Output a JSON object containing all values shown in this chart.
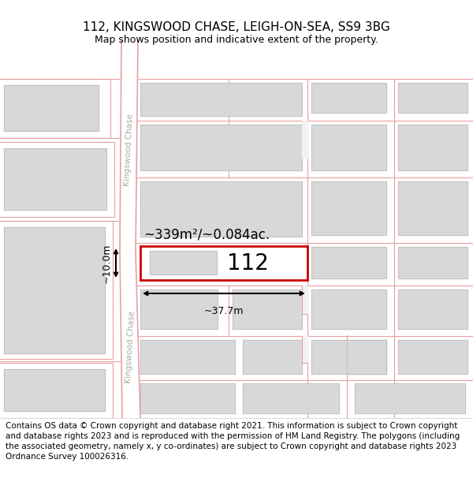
{
  "title": "112, KINGSWOOD CHASE, LEIGH-ON-SEA, SS9 3BG",
  "subtitle": "Map shows position and indicative extent of the property.",
  "footer": "Contains OS data © Crown copyright and database right 2021. This information is subject to Crown copyright and database rights 2023 and is reproduced with the permission of HM Land Registry. The polygons (including the associated geometry, namely x, y co-ordinates) are subject to Crown copyright and database rights 2023 Ordnance Survey 100026316.",
  "background_color": "#ffffff",
  "map_bg": "#f2f2f2",
  "road_color": "#ffffff",
  "road_border_color": "#e8a0a0",
  "building_color": "#d8d8d8",
  "building_border_color": "#bbbbbb",
  "highlight_color": "#cc0000",
  "area_text": "~339m²/~0.084ac.",
  "width_text": "~37.7m",
  "height_text": "~10.0m",
  "plot_number": "112",
  "title_fontsize": 11,
  "subtitle_fontsize": 9,
  "footer_fontsize": 7.5
}
